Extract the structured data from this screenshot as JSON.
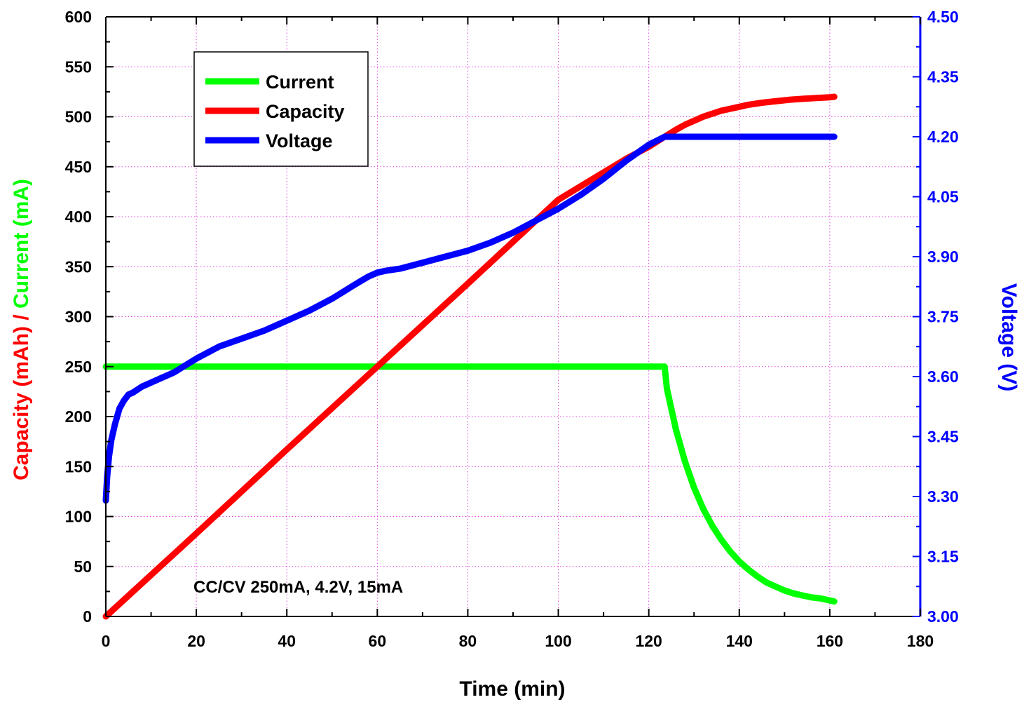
{
  "chart_data": {
    "type": "line",
    "xlabel": "Time (min)",
    "ylabel_left": [
      {
        "text": "Capacity (mAh)",
        "color": "#ff0000"
      },
      {
        "text": " / ",
        "color": "#ff0000"
      },
      {
        "text": "Current (mA)",
        "color": "#00ff00"
      }
    ],
    "ylabel_right": "Voltage (V)",
    "xlim": [
      0,
      180
    ],
    "ylim_left": [
      0,
      600
    ],
    "ylim_right": [
      3.0,
      4.5
    ],
    "x_ticks": [
      "0",
      "20",
      "40",
      "60",
      "80",
      "100",
      "120",
      "140",
      "160",
      "180"
    ],
    "y_left_ticks": [
      "0",
      "50",
      "100",
      "150",
      "200",
      "250",
      "300",
      "350",
      "400",
      "450",
      "500",
      "550",
      "600"
    ],
    "y_right_ticks": [
      "3.00",
      "3.15",
      "3.30",
      "3.45",
      "3.60",
      "3.75",
      "3.90",
      "4.05",
      "4.20",
      "4.35",
      "4.50"
    ],
    "grid": true,
    "legend_position": "top-left",
    "annotation": "CC/CV 250mA, 4.2V, 15mA",
    "colors": {
      "current": "#00ff00",
      "capacity": "#ff0000",
      "voltage": "#0000ff",
      "right_axis": "#0000ff",
      "grid": "#dd44dd"
    },
    "series": [
      {
        "name": "Current",
        "axis": "left",
        "color": "#00ff00",
        "x": [
          0,
          20,
          40,
          60,
          80,
          100,
          120,
          123.5,
          124,
          126,
          128,
          130,
          132,
          134,
          136,
          138,
          140,
          142,
          144,
          146,
          148,
          150,
          152,
          154,
          156,
          158,
          160,
          161
        ],
        "y": [
          250,
          250,
          250,
          250,
          250,
          250,
          250,
          250,
          228,
          187,
          155,
          129,
          108,
          91,
          77,
          65,
          55,
          47,
          40,
          34,
          30,
          26,
          23,
          21,
          19,
          18,
          16,
          15
        ]
      },
      {
        "name": "Capacity",
        "axis": "left",
        "color": "#ff0000",
        "x": [
          0,
          20,
          40,
          60,
          80,
          100,
          115,
          120,
          123.5,
          126,
          128,
          130,
          132,
          134,
          136,
          138,
          140,
          142,
          145,
          148,
          151,
          154,
          157,
          160,
          161
        ],
        "y": [
          0,
          83,
          167,
          250,
          333,
          417,
          458,
          470,
          480,
          487,
          492,
          496,
          500,
          503,
          506,
          508,
          510,
          512,
          514,
          515.5,
          517,
          518,
          518.8,
          519.5,
          520
        ]
      },
      {
        "name": "Voltage",
        "axis": "right",
        "color": "#0000ff",
        "x": [
          0,
          0.3,
          0.7,
          1.2,
          2,
          3,
          4,
          5,
          6,
          8,
          10,
          12,
          15,
          20,
          25,
          30,
          35,
          40,
          45,
          50,
          55,
          58,
          60,
          62,
          65,
          70,
          75,
          80,
          85,
          90,
          95,
          100,
          105,
          110,
          115,
          120,
          123.5,
          130,
          140,
          150,
          161
        ],
        "y": [
          3.29,
          3.35,
          3.4,
          3.44,
          3.48,
          3.52,
          3.54,
          3.555,
          3.56,
          3.575,
          3.585,
          3.595,
          3.61,
          3.645,
          3.675,
          3.695,
          3.715,
          3.74,
          3.765,
          3.795,
          3.83,
          3.85,
          3.86,
          3.865,
          3.87,
          3.885,
          3.9,
          3.915,
          3.935,
          3.96,
          3.99,
          4.02,
          4.055,
          4.095,
          4.14,
          4.18,
          4.2,
          4.2,
          4.2,
          4.2,
          4.2
        ]
      }
    ]
  }
}
